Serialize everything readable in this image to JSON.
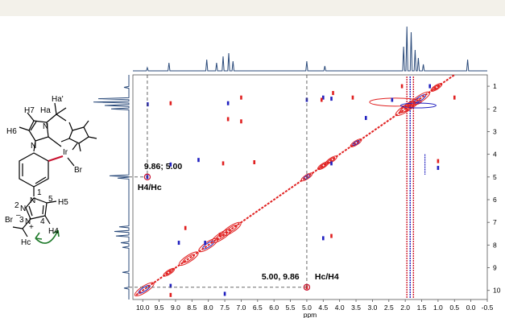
{
  "chart_data": {
    "type": "scatter",
    "x_axis": {
      "unit": "ppm",
      "reversed": true,
      "range": [
        10.3,
        -0.5
      ],
      "ticks": [
        "10.0",
        "9.5",
        "9.0",
        "8.5",
        "8.0",
        "7.5",
        "7.0",
        "6.5",
        "6.0",
        "5.5",
        "5.0",
        "4.5",
        "4.0",
        "3.5",
        "3.0",
        "2.5",
        "2.0",
        "1.5",
        "1.0",
        "0.5",
        "0.0",
        "-0.5"
      ]
    },
    "y_axis": {
      "reversed": true,
      "range": [
        0.5,
        10.4
      ],
      "ticks": [
        "1",
        "2",
        "3",
        "4",
        "5",
        "6",
        "7",
        "8",
        "9",
        "10"
      ]
    },
    "annotations": [
      {
        "label": "9.86; 5.00",
        "pair": "H4/Hc",
        "x": 9.86,
        "y": 5.0
      },
      {
        "label": "5.00, 9.86",
        "pair": "Hc/H4",
        "x": 5.0,
        "y": 9.86
      }
    ],
    "diagonal_peaks": [
      [
        9.95,
        9.95
      ],
      [
        9.2,
        9.2
      ],
      [
        8.6,
        8.6
      ],
      [
        8.0,
        8.0
      ],
      [
        7.6,
        7.6
      ],
      [
        7.3,
        7.3
      ],
      [
        5.0,
        5.0
      ],
      [
        4.5,
        4.5
      ],
      [
        4.25,
        4.25
      ],
      [
        3.5,
        3.5
      ],
      [
        2.0,
        2.0
      ],
      [
        1.85,
        1.85
      ],
      [
        1.55,
        1.55
      ],
      [
        1.05,
        1.05
      ]
    ],
    "cross_peaks": [
      [
        9.86,
        5.0
      ],
      [
        5.0,
        9.86
      ],
      [
        9.85,
        1.8
      ],
      [
        9.15,
        1.75
      ],
      [
        9.15,
        9.8
      ],
      [
        7.0,
        1.5
      ],
      [
        7.4,
        1.75
      ],
      [
        7.0,
        2.55
      ],
      [
        8.3,
        4.25
      ],
      [
        6.6,
        4.35
      ],
      [
        8.9,
        7.9
      ],
      [
        8.7,
        7.25
      ],
      [
        8.1,
        7.9
      ],
      [
        7.65,
        7.55
      ],
      [
        4.5,
        1.5
      ],
      [
        4.55,
        1.6
      ],
      [
        4.25,
        1.55
      ],
      [
        4.2,
        1.3
      ],
      [
        5.0,
        1.6
      ],
      [
        3.6,
        1.5
      ],
      [
        2.4,
        1.6
      ],
      [
        4.25,
        7.6
      ],
      [
        4.25,
        4.4
      ],
      [
        7.4,
        2.45
      ],
      [
        3.2,
        2.4
      ],
      [
        2.1,
        1.0
      ],
      [
        1.25,
        1.0
      ],
      [
        0.5,
        1.5
      ],
      [
        7.5,
        10.15
      ],
      [
        9.15,
        10.2
      ],
      [
        9.15,
        4.45
      ],
      [
        7.55,
        4.4
      ],
      [
        4.5,
        7.7
      ],
      [
        1.0,
        4.3
      ],
      [
        1.0,
        4.6
      ]
    ],
    "top_projection": [
      {
        "ppm": 9.86,
        "h": 4
      },
      {
        "ppm": 9.2,
        "h": 10
      },
      {
        "ppm": 8.05,
        "h": 14
      },
      {
        "ppm": 7.75,
        "h": 10
      },
      {
        "ppm": 7.55,
        "h": 18
      },
      {
        "ppm": 7.38,
        "h": 22
      },
      {
        "ppm": 7.25,
        "h": 12
      },
      {
        "ppm": 5.0,
        "h": 12
      },
      {
        "ppm": 4.45,
        "h": 6
      },
      {
        "ppm": 2.05,
        "h": 30
      },
      {
        "ppm": 1.95,
        "h": 55
      },
      {
        "ppm": 1.82,
        "h": 48
      },
      {
        "ppm": 1.7,
        "h": 26
      },
      {
        "ppm": 1.6,
        "h": 16
      },
      {
        "ppm": 1.45,
        "h": 8
      },
      {
        "ppm": 0.1,
        "h": 14
      }
    ],
    "left_projection": [
      {
        "ppm": 1.05,
        "w": 6
      },
      {
        "ppm": 1.55,
        "w": 38
      },
      {
        "ppm": 1.7,
        "w": 44
      },
      {
        "ppm": 1.85,
        "w": 30
      },
      {
        "ppm": 2.0,
        "w": 22
      },
      {
        "ppm": 4.95,
        "w": 24
      },
      {
        "ppm": 5.05,
        "w": 14
      },
      {
        "ppm": 7.2,
        "w": 12
      },
      {
        "ppm": 7.4,
        "w": 18
      },
      {
        "ppm": 7.6,
        "w": 16
      },
      {
        "ppm": 7.9,
        "w": 10
      },
      {
        "ppm": 8.1,
        "w": 8
      },
      {
        "ppm": 9.2,
        "w": 8
      },
      {
        "ppm": 9.9,
        "w": 6
      }
    ]
  },
  "molecule": {
    "labels": {
      "h7": "H7",
      "ha": "Ha",
      "ha_prime": "Ha'",
      "n_top": "N",
      "h6": "H6",
      "n_left": "N",
      "ir": "Ir",
      "br_ir": "Br",
      "n1_num": "1",
      "n1": "N",
      "n2_num": "2",
      "n2": "N",
      "c5_num": "5",
      "h5": "H5",
      "br_minus": "Br",
      "minus": "–",
      "n3_num": "3",
      "n3": "N",
      "plus": "+",
      "c4_num": "4",
      "h4": "H4",
      "hc": "Hc"
    }
  }
}
